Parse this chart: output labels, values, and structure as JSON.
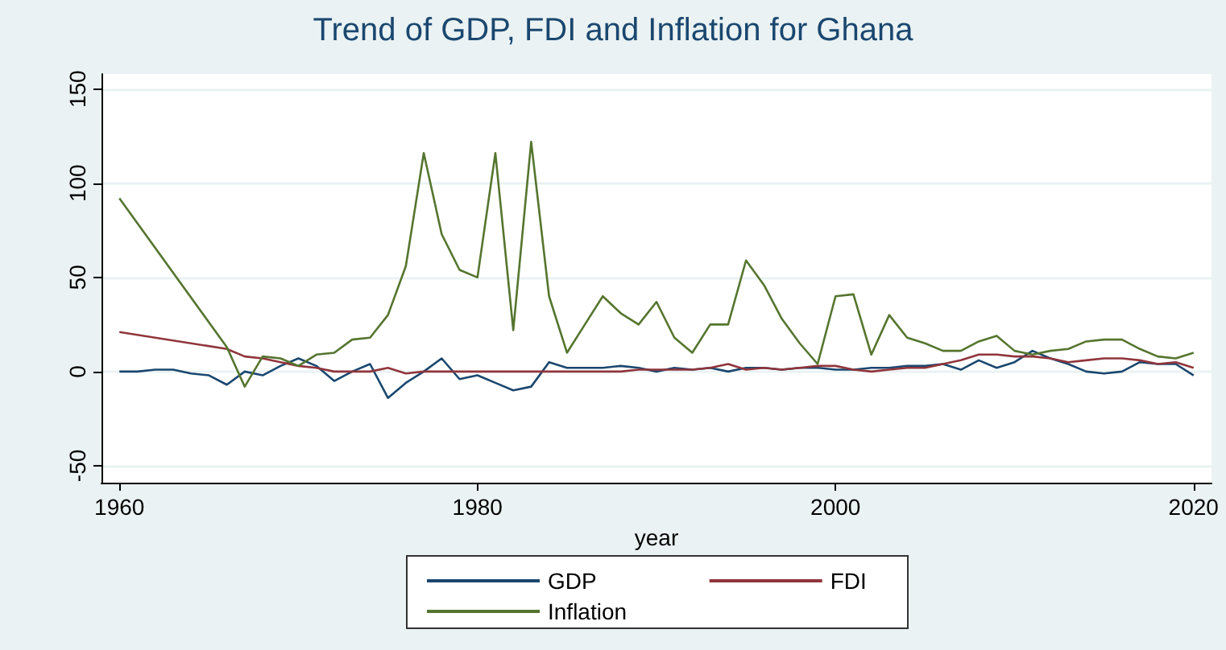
{
  "chart_data": {
    "type": "line",
    "title": "Trend of GDP, FDI and Inflation for Ghana",
    "xlabel": "year",
    "xlim": [
      1959,
      2021
    ],
    "xticks": [
      1960,
      1980,
      2000,
      2020
    ],
    "ylim": [
      -59,
      158
    ],
    "yticks": [
      -50,
      0,
      50,
      100,
      150
    ],
    "grid": "y",
    "legend": "bottom",
    "marker": "none",
    "line_style": "solid",
    "series": [
      {
        "name": "GDP",
        "color": "#1a476f",
        "x": [
          1960,
          1961,
          1962,
          1963,
          1964,
          1965,
          1966,
          1967,
          1968,
          1969,
          1970,
          1971,
          1972,
          1973,
          1974,
          1975,
          1976,
          1977,
          1978,
          1979,
          1980,
          1981,
          1982,
          1983,
          1984,
          1985,
          1986,
          1987,
          1988,
          1989,
          1990,
          1991,
          1992,
          1993,
          1994,
          1995,
          1996,
          1997,
          1998,
          1999,
          2000,
          2001,
          2002,
          2003,
          2004,
          2005,
          2006,
          2007,
          2008,
          2009,
          2010,
          2011,
          2012,
          2013,
          2014,
          2015,
          2016,
          2017,
          2018,
          2019,
          2020
        ],
        "values": [
          0,
          0,
          1,
          1,
          -1,
          -2,
          -7,
          0,
          -2,
          3,
          7,
          3,
          -5,
          0,
          4,
          -14,
          -6,
          0,
          7,
          -4,
          -2,
          -6,
          -10,
          -8,
          5,
          2,
          2,
          2,
          3,
          2,
          0,
          2,
          1,
          2,
          0,
          2,
          2,
          1,
          2,
          2,
          1,
          1,
          2,
          2,
          3,
          3,
          4,
          1,
          6,
          2,
          5,
          11,
          7,
          4,
          0,
          -1,
          0,
          5,
          4,
          4,
          -2
        ]
      },
      {
        "name": "FDI",
        "color": "#90353b",
        "x": [
          1960,
          1966,
          1967,
          1968,
          1969,
          1970,
          1971,
          1972,
          1973,
          1974,
          1975,
          1976,
          1977,
          1978,
          1979,
          1980,
          1981,
          1982,
          1983,
          1984,
          1985,
          1986,
          1987,
          1988,
          1989,
          1990,
          1991,
          1992,
          1993,
          1994,
          1995,
          1996,
          1997,
          1998,
          1999,
          2000,
          2001,
          2002,
          2003,
          2004,
          2005,
          2006,
          2007,
          2008,
          2009,
          2010,
          2011,
          2012,
          2013,
          2014,
          2015,
          2016,
          2017,
          2018,
          2019,
          2020
        ],
        "values": [
          21,
          12,
          8,
          7,
          5,
          3,
          2,
          0,
          0,
          0,
          2,
          -1,
          0,
          0,
          0,
          0,
          0,
          0,
          0,
          0,
          0,
          0,
          0,
          0,
          1,
          1,
          1,
          1,
          2,
          4,
          1,
          2,
          1,
          2,
          3,
          3,
          1,
          0,
          1,
          2,
          2,
          4,
          6,
          9,
          9,
          8,
          8,
          7,
          5,
          6,
          7,
          7,
          6,
          4,
          5,
          2
        ]
      },
      {
        "name": "Inflation",
        "color": "#55752f",
        "x": [
          1960,
          1966,
          1967,
          1968,
          1969,
          1970,
          1971,
          1972,
          1973,
          1974,
          1975,
          1976,
          1977,
          1978,
          1979,
          1980,
          1981,
          1982,
          1983,
          1984,
          1985,
          1986,
          1987,
          1988,
          1989,
          1990,
          1991,
          1992,
          1993,
          1994,
          1995,
          1996,
          1997,
          1998,
          1999,
          2000,
          2001,
          2002,
          2003,
          2004,
          2005,
          2006,
          2007,
          2008,
          2009,
          2010,
          2011,
          2012,
          2013,
          2014,
          2015,
          2016,
          2017,
          2018,
          2019,
          2020
        ],
        "values": [
          92,
          13,
          -8,
          8,
          7,
          3,
          9,
          10,
          17,
          18,
          30,
          56,
          116,
          73,
          54,
          50,
          116,
          22,
          122,
          40,
          10,
          25,
          40,
          31,
          25,
          37,
          18,
          10,
          25,
          25,
          59,
          46,
          28,
          15,
          4,
          40,
          41,
          9,
          30,
          18,
          15,
          11,
          11,
          16,
          19,
          11,
          9,
          11,
          12,
          16,
          17,
          17,
          12,
          8,
          7,
          10
        ]
      }
    ]
  }
}
